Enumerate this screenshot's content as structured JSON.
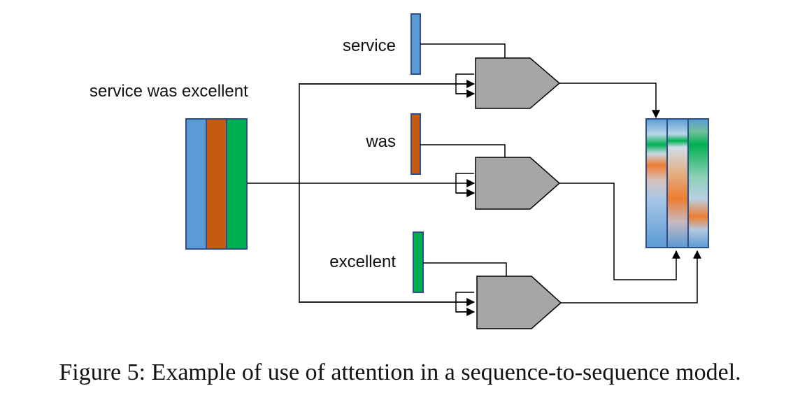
{
  "input_label": "service was excellent",
  "words": [
    {
      "text": "service",
      "color": "#5b9bd5"
    },
    {
      "text": "was",
      "color": "#c55a11"
    },
    {
      "text": "excellent",
      "color": "#00b050"
    }
  ],
  "colors": {
    "blue": "#5b9bd5",
    "orange": "#c55a11",
    "orange_light": "#ed7d31",
    "green": "#00b050",
    "stroke": "#2f4e8a",
    "gate": "#a6a6a6",
    "line": "#000000"
  },
  "caption": "Figure 5: Example of use of attention in a sequence-to-sequence model."
}
